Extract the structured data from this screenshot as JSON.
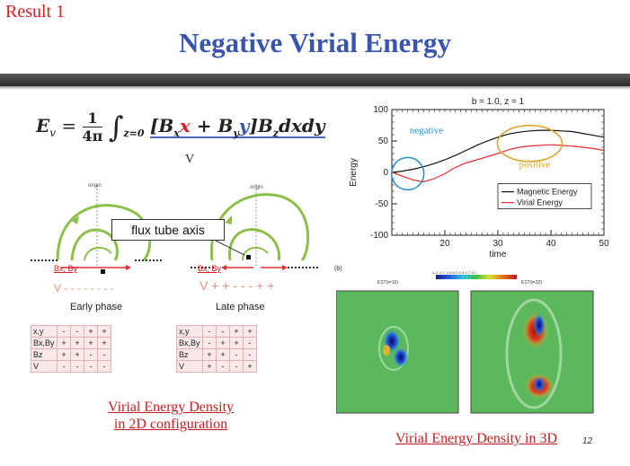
{
  "header": {
    "result_label": "Result 1",
    "title": "Negative Virial Energy"
  },
  "equation": {
    "lhs": "E",
    "lhs_sub": "v",
    "frac_num": "1",
    "frac_den": "4π",
    "integral_sub": "z=0",
    "body_open": "[B",
    "bx_sub": "x",
    "x": "x",
    "plus": " + B",
    "by_sub": "y",
    "y": "y",
    "body_close": "]B",
    "bz_sub": "z",
    "tail": "dxdy",
    "v_label": "V"
  },
  "diagram": {
    "origin_left": "origin",
    "origin_right": "origin",
    "flux_tube_axis": "flux tube axis",
    "bx_by_left": "Bx, By",
    "bx_by_right": "Bx, By",
    "v_left": "V - - - - - - - -",
    "v_right": "V + + - - - + +",
    "early_phase": "Early phase",
    "late_phase": "Late phase"
  },
  "tables": {
    "early": [
      [
        "x,y",
        "-",
        "-",
        "+",
        "+"
      ],
      [
        "Bx,By",
        "+",
        "+",
        "+",
        "+"
      ],
      [
        "Bz",
        "+",
        "+",
        "-",
        "-"
      ],
      [
        "V",
        "-",
        "-",
        "-",
        "-"
      ]
    ],
    "late": [
      [
        "x,y",
        "-",
        "-",
        "+",
        "+"
      ],
      [
        "Bx,By",
        "-",
        "+",
        "+",
        "-"
      ],
      [
        "Bz",
        "+",
        "+",
        "-",
        "-"
      ],
      [
        "V",
        "+",
        "-",
        "-",
        "+"
      ]
    ]
  },
  "captions": {
    "left_line1": "Virial Energy Density",
    "left_line2": "in 2D configuration",
    "right": "Virial Energy Density in 3D"
  },
  "page_number": "12",
  "chart_data": {
    "type": "line",
    "title": "b = 1.0, z = 1",
    "xlabel": "time",
    "ylabel": "Energy",
    "xlim": [
      10,
      50
    ],
    "ylim": [
      -100,
      100
    ],
    "xticks": [
      20,
      30,
      40,
      50
    ],
    "yticks": [
      100,
      50,
      0,
      -50,
      -100
    ],
    "series": [
      {
        "name": "Magnetic Energy",
        "color": "#111111",
        "x": [
          10,
          12,
          14,
          16,
          18,
          20,
          22,
          24,
          26,
          28,
          30,
          32,
          34,
          36,
          38,
          40,
          42,
          44,
          46,
          48,
          50
        ],
        "y": [
          0,
          2,
          5,
          9,
          14,
          20,
          27,
          35,
          43,
          50,
          56,
          61,
          64,
          66,
          67,
          67,
          66,
          65,
          62,
          59,
          56
        ]
      },
      {
        "name": "Virial Energy",
        "color": "#e03030",
        "x": [
          10,
          12,
          14,
          16,
          18,
          20,
          22,
          24,
          26,
          28,
          30,
          32,
          34,
          36,
          38,
          40,
          42,
          44,
          46,
          48,
          50
        ],
        "y": [
          0,
          -6,
          -12,
          -15,
          -10,
          -2,
          8,
          15,
          20,
          25,
          30,
          36,
          40,
          42,
          43,
          44,
          43,
          42,
          40,
          38,
          35
        ]
      }
    ],
    "annotations": [
      {
        "text": "negative",
        "color": "#1f8fd0"
      },
      {
        "text": "positive",
        "color": "#e0a020"
      }
    ],
    "legend": "bottom-right"
  },
  "panel_b": {
    "label": "(b)",
    "left_title": "EST(t=16)",
    "right_title": "EST(t=32)",
    "colorbar_ticks": "-1.0 -0.7 -0.5 0.0 0.3 0.7 1.0"
  }
}
